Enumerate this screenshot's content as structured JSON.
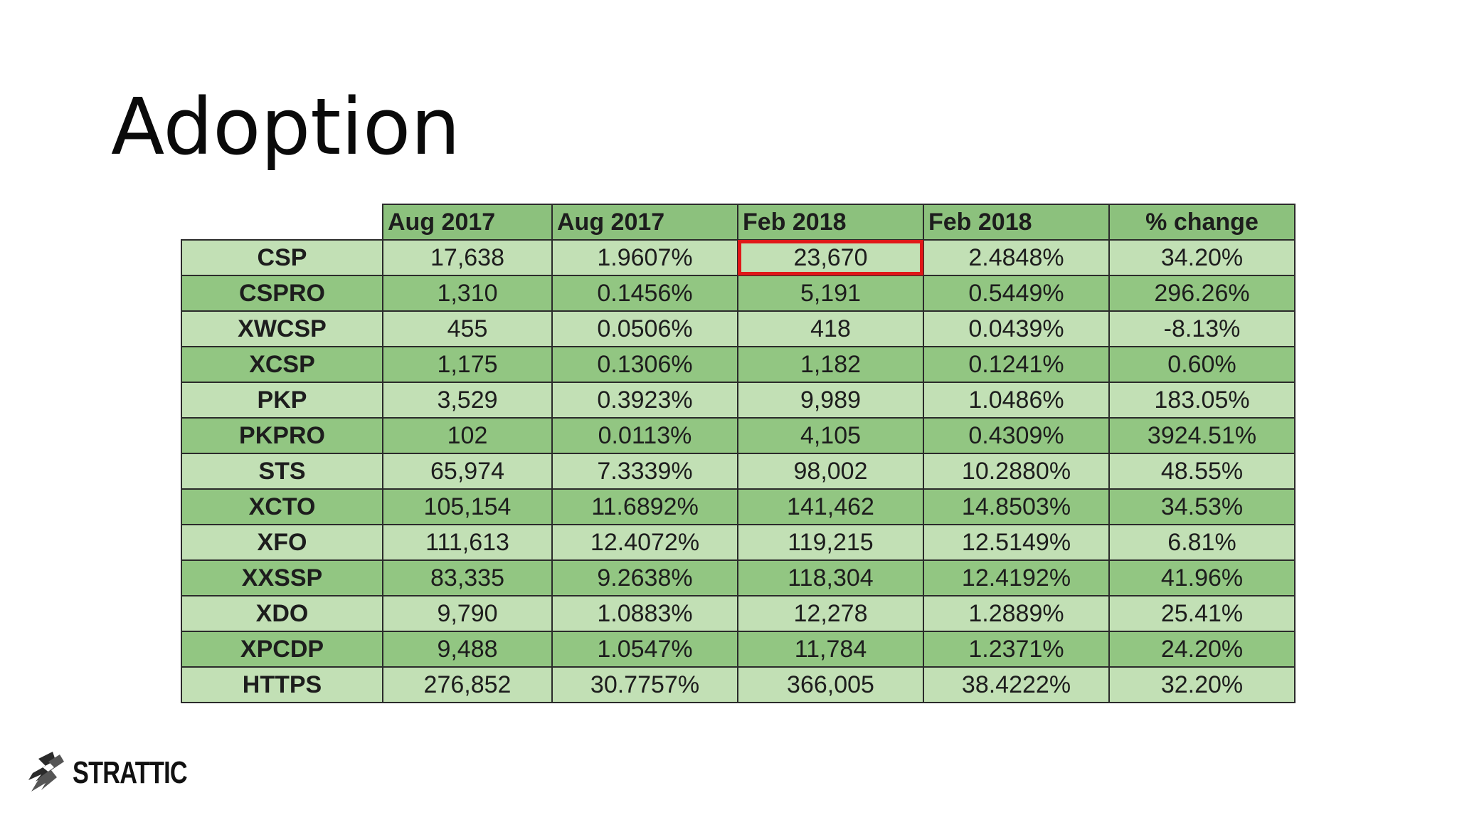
{
  "slide": {
    "title": "Adoption"
  },
  "table": {
    "headers": [
      "",
      "Aug 2017",
      "Aug 2017",
      "Feb 2018",
      "Feb 2018",
      "% change"
    ],
    "rows": [
      {
        "label": "CSP",
        "aug_count": "17,638",
        "aug_pct": "1.9607%",
        "feb_count": "23,670",
        "feb_pct": "2.4848%",
        "change": "34.20%"
      },
      {
        "label": "CSPRO",
        "aug_count": "1,310",
        "aug_pct": "0.1456%",
        "feb_count": "5,191",
        "feb_pct": "0.5449%",
        "change": "296.26%"
      },
      {
        "label": "XWCSP",
        "aug_count": "455",
        "aug_pct": "0.0506%",
        "feb_count": "418",
        "feb_pct": "0.0439%",
        "change": "-8.13%"
      },
      {
        "label": "XCSP",
        "aug_count": "1,175",
        "aug_pct": "0.1306%",
        "feb_count": "1,182",
        "feb_pct": "0.1241%",
        "change": "0.60%"
      },
      {
        "label": "PKP",
        "aug_count": "3,529",
        "aug_pct": "0.3923%",
        "feb_count": "9,989",
        "feb_pct": "1.0486%",
        "change": "183.05%"
      },
      {
        "label": "PKPRO",
        "aug_count": "102",
        "aug_pct": "0.0113%",
        "feb_count": "4,105",
        "feb_pct": "0.4309%",
        "change": "3924.51%"
      },
      {
        "label": "STS",
        "aug_count": "65,974",
        "aug_pct": "7.3339%",
        "feb_count": "98,002",
        "feb_pct": "10.2880%",
        "change": "48.55%"
      },
      {
        "label": "XCTO",
        "aug_count": "105,154",
        "aug_pct": "11.6892%",
        "feb_count": "141,462",
        "feb_pct": "14.8503%",
        "change": "34.53%"
      },
      {
        "label": "XFO",
        "aug_count": "111,613",
        "aug_pct": "12.4072%",
        "feb_count": "119,215",
        "feb_pct": "12.5149%",
        "change": "6.81%"
      },
      {
        "label": "XXSSP",
        "aug_count": "83,335",
        "aug_pct": "9.2638%",
        "feb_count": "118,304",
        "feb_pct": "12.4192%",
        "change": "41.96%"
      },
      {
        "label": "XDO",
        "aug_count": "9,790",
        "aug_pct": "1.0883%",
        "feb_count": "12,278",
        "feb_pct": "1.2889%",
        "change": "25.41%"
      },
      {
        "label": "XPCDP",
        "aug_count": "9,488",
        "aug_pct": "1.0547%",
        "feb_count": "11,784",
        "feb_pct": "1.2371%",
        "change": "24.20%"
      },
      {
        "label": "HTTPS",
        "aug_count": "276,852",
        "aug_pct": "30.7757%",
        "feb_count": "366,005",
        "feb_pct": "38.4222%",
        "change": "32.20%"
      }
    ],
    "highlighted_cell": "CSP / Feb 2018 count",
    "colors": {
      "header_bg": "#8cc17d",
      "row_light": "#c2e0b5",
      "row_dark": "#92c682",
      "highlight_border": "#e01818"
    }
  },
  "logo": {
    "text": "STRATTIC",
    "icon": "strattic-logo-icon"
  }
}
